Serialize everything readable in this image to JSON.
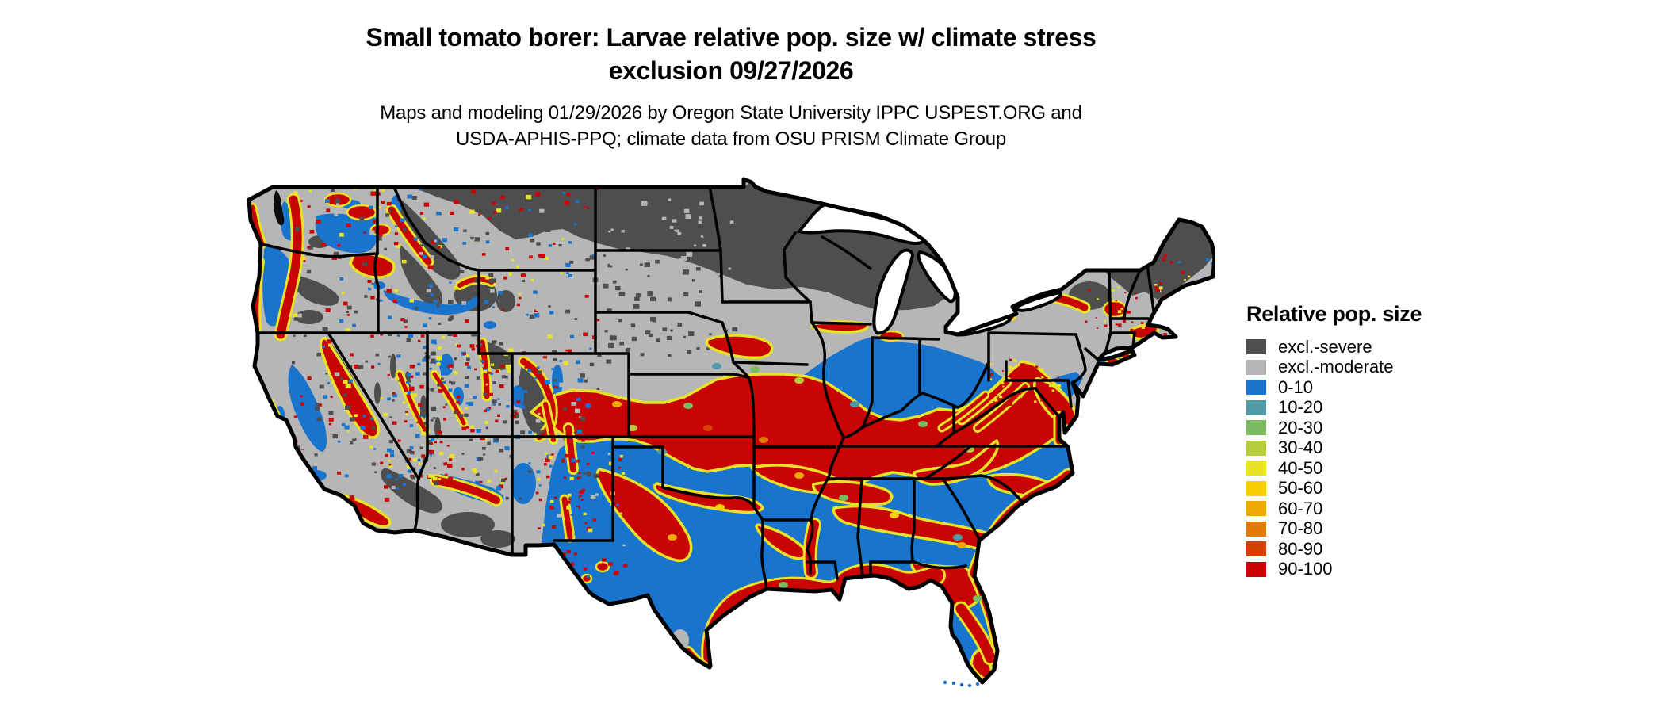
{
  "title": {
    "line1": "Small tomato borer: Larvae relative pop. size w/ climate stress",
    "line2": "exclusion 09/27/2026"
  },
  "subtitle": {
    "line1": "Maps and modeling 01/29/2026 by Oregon State University IPPC USPEST.ORG and",
    "line2": "USDA-APHIS-PPQ; climate data from OSU PRISM Climate Group"
  },
  "legend": {
    "title": "Relative pop. size",
    "entries": [
      {
        "label": "excl.-severe",
        "color": "#4e4e4e"
      },
      {
        "label": "excl.-moderate",
        "color": "#b6b6b6"
      },
      {
        "label": "0-10",
        "color": "#1874cd"
      },
      {
        "label": "10-20",
        "color": "#4f9aa5"
      },
      {
        "label": "20-30",
        "color": "#7cb961"
      },
      {
        "label": "30-40",
        "color": "#b9cc3c"
      },
      {
        "label": "40-50",
        "color": "#e8e327"
      },
      {
        "label": "50-60",
        "color": "#f8cf05"
      },
      {
        "label": "60-70",
        "color": "#efa904"
      },
      {
        "label": "70-80",
        "color": "#e27b05"
      },
      {
        "label": "80-90",
        "color": "#d44102"
      },
      {
        "label": "90-100",
        "color": "#c80404"
      }
    ]
  },
  "map": {
    "region_label": "Continental United States",
    "background_color": "#ffffff",
    "state_border_color": "#000000",
    "water_color": "#ffffff"
  }
}
